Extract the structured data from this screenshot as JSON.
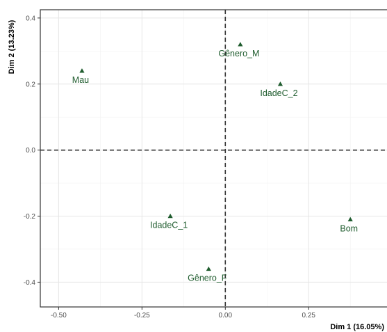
{
  "chart_data": {
    "type": "scatter",
    "title": "",
    "xlabel": "Dim 1 (16.05%)",
    "ylabel": "Dim 2 (13.23%)",
    "xlim": [
      -0.555,
      0.485
    ],
    "ylim": [
      -0.475,
      0.425
    ],
    "x_ticks": [
      -0.5,
      -0.25,
      0.0,
      0.25
    ],
    "x_tick_labels": [
      "-0.50",
      "-0.25",
      "0.00",
      "0.25"
    ],
    "y_ticks": [
      -0.4,
      -0.2,
      0.0,
      0.2,
      0.4
    ],
    "y_tick_labels": [
      "-0.4",
      "-0.2",
      "0.0",
      "0.2",
      "0.4"
    ],
    "grid": true,
    "reference_lines": {
      "x": 0,
      "y": 0,
      "style": "dashed"
    },
    "marker": "triangle",
    "color": "#1f5c2e",
    "points": [
      {
        "label": "Mau",
        "x": -0.43,
        "y": 0.24
      },
      {
        "label": "Gênero_M",
        "x": 0.045,
        "y": 0.32
      },
      {
        "label": "IdadeC_2",
        "x": 0.165,
        "y": 0.2
      },
      {
        "label": "IdadeC_1",
        "x": -0.165,
        "y": -0.2
      },
      {
        "label": "Bom",
        "x": 0.375,
        "y": -0.21
      },
      {
        "label": "Gênero_F",
        "x": -0.05,
        "y": -0.36
      }
    ]
  }
}
